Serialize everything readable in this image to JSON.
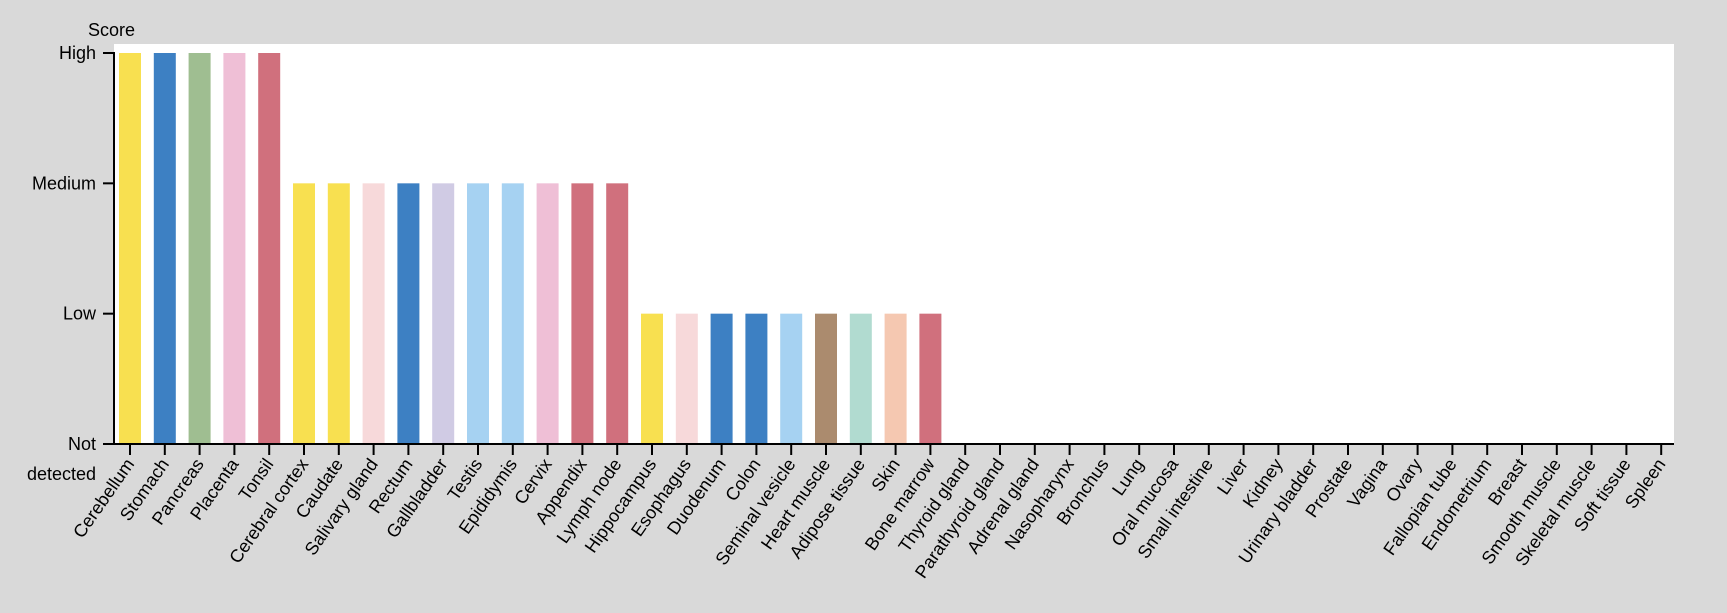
{
  "chart_data": {
    "type": "bar",
    "ylabel": "Score",
    "y_levels": [
      "Not detected",
      "Low",
      "Medium",
      "High"
    ],
    "y_tick_labels": [
      {
        "lines": [
          "Not",
          "detected"
        ]
      },
      {
        "lines": [
          "Low"
        ]
      },
      {
        "lines": [
          "Medium"
        ]
      },
      {
        "lines": [
          "High"
        ]
      }
    ],
    "ylim": [
      0,
      3
    ],
    "grid": false,
    "legend": "none",
    "categories": [
      "Cerebellum",
      "Stomach",
      "Pancreas",
      "Placenta",
      "Tonsil",
      "Cerebral cortex",
      "Caudate",
      "Salivary gland",
      "Rectum",
      "Gallbladder",
      "Testis",
      "Epididymis",
      "Cervix",
      "Appendix",
      "Lymph node",
      "Hippocampus",
      "Esophagus",
      "Duodenum",
      "Colon",
      "Seminal vesicle",
      "Heart muscle",
      "Adipose tissue",
      "Skin",
      "Bone marrow",
      "Thyroid gland",
      "Parathyroid gland",
      "Adrenal gland",
      "Nasopharynx",
      "Bronchus",
      "Lung",
      "Oral mucosa",
      "Small intestine",
      "Liver",
      "Kidney",
      "Urinary bladder",
      "Prostate",
      "Vagina",
      "Ovary",
      "Fallopian tube",
      "Endometrium",
      "Breast",
      "Smooth muscle",
      "Skeletal muscle",
      "Soft tissue",
      "Spleen"
    ],
    "values": [
      3,
      3,
      3,
      3,
      3,
      2,
      2,
      2,
      2,
      2,
      2,
      2,
      2,
      2,
      2,
      1,
      1,
      1,
      1,
      1,
      1,
      1,
      1,
      1,
      0,
      0,
      0,
      0,
      0,
      0,
      0,
      0,
      0,
      0,
      0,
      0,
      0,
      0,
      0,
      0,
      0,
      0,
      0,
      0,
      0
    ],
    "colors": [
      "#f8e050",
      "#3d80c3",
      "#9fbe91",
      "#efbfd6",
      "#d0707d",
      "#f8e050",
      "#f8e050",
      "#f7d9da",
      "#3d80c3",
      "#d0cbe4",
      "#a6d2f2",
      "#a6d2f2",
      "#efbfd6",
      "#d0707d",
      "#d0707d",
      "#f8e050",
      "#f7d9da",
      "#3d80c3",
      "#3d80c3",
      "#a6d2f2",
      "#ab8b6e",
      "#b1dbd0",
      "#f5c8b1",
      "#d0707d",
      "#d0707d",
      "#d0707d",
      "#d0707d",
      "#d0707d",
      "#d0707d",
      "#d0707d",
      "#d0707d",
      "#d0707d",
      "#d0707d",
      "#d0707d",
      "#d0707d",
      "#d0707d",
      "#d0707d",
      "#d0707d",
      "#d0707d",
      "#d0707d",
      "#d0707d",
      "#d0707d",
      "#d0707d",
      "#d0707d",
      "#d0707d"
    ]
  }
}
